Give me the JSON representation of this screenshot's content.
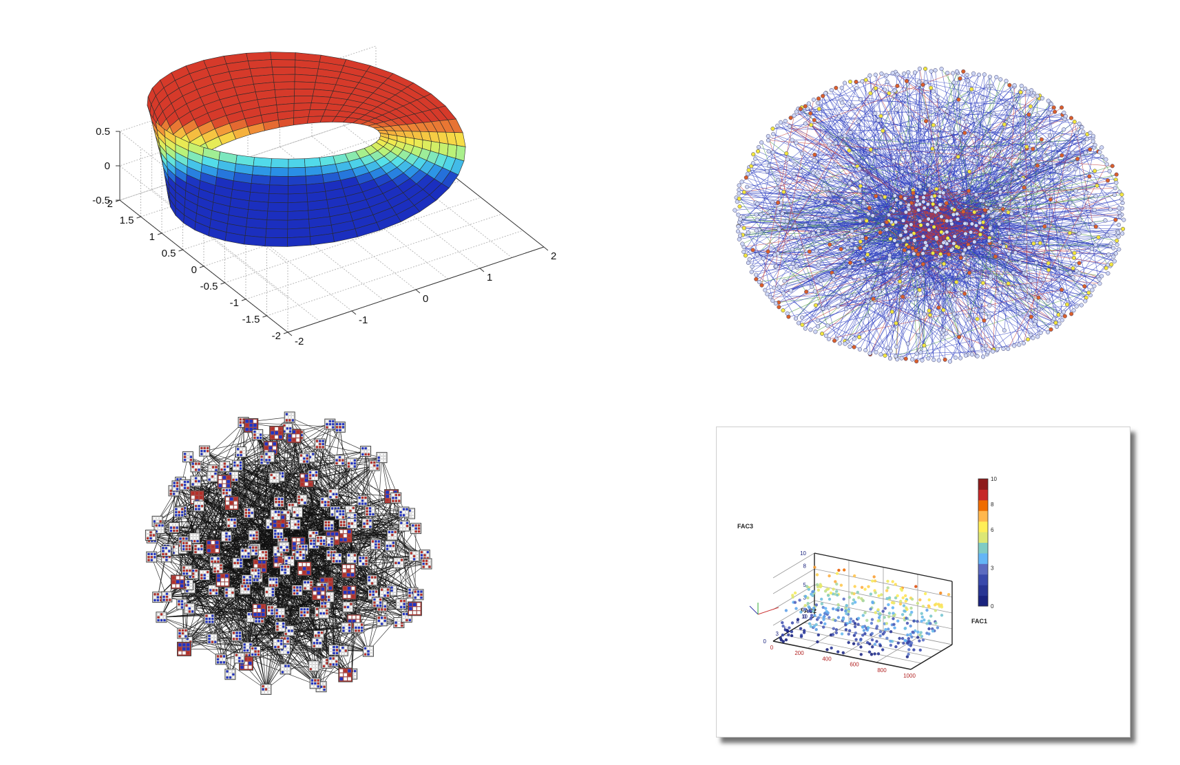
{
  "chart_data": [
    {
      "type": "surface",
      "title": "",
      "xticks": [
        "-2",
        "-1",
        "0",
        "1",
        "2"
      ],
      "yticks": [
        "-2",
        "-1.5",
        "-1",
        "-0.5",
        "0",
        "0.5",
        "1",
        "1.5",
        "2"
      ],
      "zticks": [
        "-0.5",
        "0",
        "0.5"
      ],
      "xlim": [
        -2,
        2
      ],
      "ylim": [
        -2,
        2
      ],
      "zlim": [
        -0.5,
        0.5
      ],
      "grid": true,
      "colormap": [
        "#1b2fbf",
        "#2a8fe6",
        "#55e0ea",
        "#b8f27a",
        "#f6e84a",
        "#f5a23a",
        "#d63a2a"
      ],
      "surface": {
        "shape": "mobius-strip",
        "radius": 1.5,
        "half_width": 0.5,
        "u_segments": 42,
        "v_segments": 10
      }
    },
    {
      "type": "network",
      "node_colors": {
        "default": "#cfd8f6",
        "yellow": "#f2e640",
        "orange": "#d9602c"
      },
      "edge_colors": [
        "#2d3fc0",
        "#c23a3a",
        "#4a9a3e"
      ]
    },
    {
      "type": "network",
      "node_colors": {
        "red": "#b5302a",
        "blue": "#2233c2",
        "frame": "#444444"
      },
      "edge_colors": [
        "#111111"
      ]
    },
    {
      "type": "scatter3d",
      "xlabel": "FAC1",
      "ylabel": "FAC2",
      "zlabel": "FAC3",
      "xticks": [
        "0",
        "200",
        "400",
        "600",
        "800",
        "1000"
      ],
      "yticks": [
        "0",
        "3",
        "5",
        "8",
        "10"
      ],
      "zticks": [
        "0",
        "3",
        "5",
        "8",
        "10"
      ],
      "xlim": [
        0,
        1000
      ],
      "ylim": [
        0,
        10
      ],
      "zlim": [
        0,
        10
      ],
      "colorbar": {
        "ticks": [
          "0",
          "3",
          "6",
          "8",
          "10"
        ],
        "range": [
          0,
          10
        ],
        "colors": [
          "#1a237e",
          "#283593",
          "#3949ab",
          "#5c6bc0",
          "#64b5f6",
          "#80cbc4",
          "#dce775",
          "#ffee58",
          "#ffb74d",
          "#ef6c00",
          "#c62828",
          "#8e1b1b"
        ]
      },
      "grid": true
    }
  ]
}
